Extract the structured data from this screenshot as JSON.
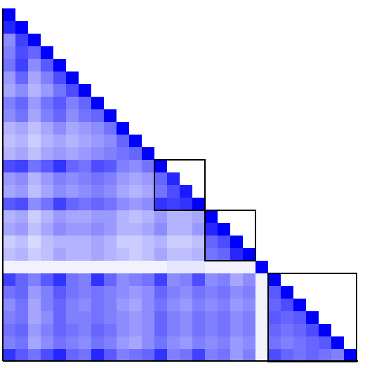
{
  "chart_data": {
    "type": "heatmap",
    "title": "",
    "xlabel": "",
    "ylabel": "",
    "shape": "lower-triangular",
    "n": 28,
    "value_range": [
      0,
      1
    ],
    "colors": {
      "low": "#ffffff",
      "high": "#0000ff",
      "block_outline": "#000000",
      "axis": "#000000"
    },
    "values": [
      [
        1.0
      ],
      [
        0.85,
        1.0
      ],
      [
        0.45,
        0.75,
        1.0
      ],
      [
        0.5,
        0.7,
        0.6,
        1.0
      ],
      [
        0.55,
        0.75,
        0.45,
        0.65,
        1.0
      ],
      [
        0.4,
        0.6,
        0.35,
        0.5,
        0.7,
        1.0
      ],
      [
        0.35,
        0.45,
        0.3,
        0.4,
        0.55,
        0.7,
        1.0
      ],
      [
        0.5,
        0.6,
        0.4,
        0.55,
        0.65,
        0.5,
        0.6,
        1.0
      ],
      [
        0.45,
        0.55,
        0.35,
        0.5,
        0.6,
        0.45,
        0.55,
        0.6,
        1.0
      ],
      [
        0.3,
        0.35,
        0.25,
        0.35,
        0.45,
        0.35,
        0.4,
        0.45,
        0.55,
        1.0
      ],
      [
        0.25,
        0.3,
        0.2,
        0.3,
        0.35,
        0.3,
        0.35,
        0.4,
        0.45,
        0.6,
        1.0
      ],
      [
        0.3,
        0.35,
        0.25,
        0.35,
        0.4,
        0.35,
        0.4,
        0.45,
        0.5,
        0.55,
        0.6,
        1.0
      ],
      [
        0.7,
        0.75,
        0.55,
        0.65,
        0.8,
        0.6,
        0.55,
        0.7,
        0.65,
        0.5,
        0.45,
        0.55,
        1.0
      ],
      [
        0.4,
        0.45,
        0.3,
        0.4,
        0.5,
        0.45,
        0.5,
        0.55,
        0.5,
        0.4,
        0.35,
        0.4,
        0.6,
        0.85
      ],
      [
        0.35,
        0.4,
        0.25,
        0.35,
        0.45,
        0.4,
        0.45,
        0.5,
        0.45,
        0.35,
        0.3,
        0.35,
        0.55,
        0.7,
        0.9
      ],
      [
        0.65,
        0.7,
        0.45,
        0.55,
        0.75,
        0.6,
        0.55,
        0.6,
        0.55,
        0.45,
        0.4,
        0.45,
        0.8,
        0.75,
        0.8,
        1.0
      ],
      [
        0.3,
        0.35,
        0.2,
        0.3,
        0.4,
        0.35,
        0.35,
        0.4,
        0.4,
        0.3,
        0.25,
        0.3,
        0.4,
        0.3,
        0.3,
        0.35,
        1.0
      ],
      [
        0.35,
        0.4,
        0.25,
        0.35,
        0.45,
        0.4,
        0.4,
        0.45,
        0.4,
        0.3,
        0.3,
        0.35,
        0.45,
        0.3,
        0.3,
        0.4,
        0.85,
        1.0
      ],
      [
        0.2,
        0.25,
        0.15,
        0.25,
        0.3,
        0.3,
        0.3,
        0.35,
        0.3,
        0.2,
        0.2,
        0.25,
        0.3,
        0.2,
        0.2,
        0.25,
        0.6,
        0.7,
        1.0
      ],
      [
        0.25,
        0.3,
        0.2,
        0.25,
        0.35,
        0.3,
        0.3,
        0.35,
        0.3,
        0.25,
        0.2,
        0.25,
        0.35,
        0.25,
        0.25,
        0.3,
        0.55,
        0.6,
        0.85,
        1.0
      ],
      [
        0.05,
        0.05,
        0.05,
        0.05,
        0.05,
        0.05,
        0.05,
        0.05,
        0.05,
        0.05,
        0.05,
        0.05,
        0.05,
        0.1,
        0.1,
        0.1,
        0.05,
        0.05,
        0.05,
        0.05,
        1.0
      ],
      [
        0.75,
        0.6,
        0.5,
        0.65,
        0.8,
        0.55,
        0.5,
        0.8,
        0.6,
        0.45,
        0.5,
        0.55,
        0.75,
        0.45,
        0.5,
        0.7,
        0.45,
        0.5,
        0.35,
        0.45,
        0.05,
        1.0
      ],
      [
        0.55,
        0.6,
        0.4,
        0.5,
        0.65,
        0.55,
        0.5,
        0.55,
        0.5,
        0.45,
        0.4,
        0.45,
        0.6,
        0.5,
        0.45,
        0.55,
        0.5,
        0.55,
        0.45,
        0.5,
        0.05,
        0.65,
        1.0
      ],
      [
        0.45,
        0.55,
        0.35,
        0.5,
        0.6,
        0.5,
        0.45,
        0.55,
        0.5,
        0.4,
        0.35,
        0.45,
        0.55,
        0.45,
        0.4,
        0.5,
        0.45,
        0.5,
        0.4,
        0.45,
        0.05,
        0.6,
        0.7,
        1.0
      ],
      [
        0.5,
        0.55,
        0.35,
        0.45,
        0.6,
        0.5,
        0.5,
        0.55,
        0.5,
        0.45,
        0.4,
        0.45,
        0.6,
        0.5,
        0.45,
        0.55,
        0.5,
        0.55,
        0.45,
        0.5,
        0.05,
        0.65,
        0.6,
        0.65,
        1.0
      ],
      [
        0.55,
        0.6,
        0.4,
        0.5,
        0.6,
        0.55,
        0.5,
        0.6,
        0.55,
        0.45,
        0.4,
        0.45,
        0.6,
        0.5,
        0.45,
        0.55,
        0.5,
        0.55,
        0.45,
        0.5,
        0.05,
        0.6,
        0.55,
        0.6,
        0.7,
        1.0
      ],
      [
        0.5,
        0.55,
        0.35,
        0.45,
        0.55,
        0.5,
        0.45,
        0.55,
        0.5,
        0.4,
        0.35,
        0.45,
        0.55,
        0.45,
        0.4,
        0.5,
        0.45,
        0.5,
        0.4,
        0.45,
        0.05,
        0.55,
        0.5,
        0.55,
        0.6,
        0.65,
        1.0
      ],
      [
        0.8,
        0.65,
        0.55,
        0.7,
        0.85,
        0.6,
        0.55,
        0.85,
        0.65,
        0.5,
        0.55,
        0.6,
        0.8,
        0.5,
        0.55,
        0.75,
        0.5,
        0.55,
        0.4,
        0.5,
        0.05,
        0.7,
        0.6,
        0.55,
        0.6,
        0.55,
        0.5,
        1.0
      ]
    ],
    "blocks": [
      {
        "start": 12,
        "end": 15
      },
      {
        "start": 16,
        "end": 19
      },
      {
        "start": 21,
        "end": 27
      }
    ]
  }
}
